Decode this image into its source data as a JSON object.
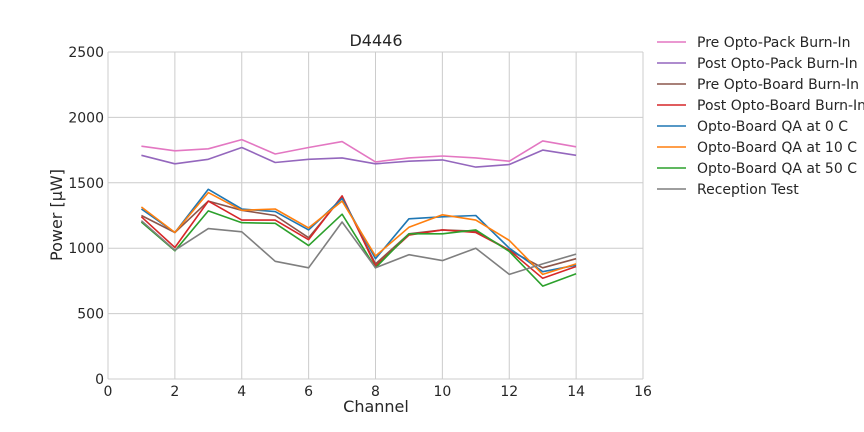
{
  "chart_data": {
    "type": "line",
    "title": "D4446",
    "xlabel": "Channel",
    "ylabel": "Power [μW]",
    "xlim": [
      0,
      16
    ],
    "ylim": [
      0,
      2500
    ],
    "xticks": [
      "0",
      "2",
      "4",
      "6",
      "8",
      "10",
      "12",
      "14",
      "16"
    ],
    "yticks": [
      "0",
      "500",
      "1000",
      "1500",
      "2000",
      "2500"
    ],
    "grid": true,
    "legend_position": "outside-right",
    "x": [
      1,
      2,
      3,
      4,
      5,
      6,
      7,
      8,
      9,
      10,
      11,
      12,
      13,
      14
    ],
    "series": [
      {
        "name": "Pre Opto-Pack Burn-In",
        "color": "#e377c2",
        "values": [
          1780,
          1745,
          1760,
          1830,
          1720,
          1770,
          1815,
          1660,
          1690,
          1705,
          1690,
          1665,
          1820,
          1775
        ]
      },
      {
        "name": "Post Opto-Pack Burn-In",
        "color": "#9467bd",
        "values": [
          1710,
          1645,
          1680,
          1770,
          1655,
          1680,
          1690,
          1645,
          1665,
          1675,
          1620,
          1640,
          1750,
          1710
        ]
      },
      {
        "name": "Pre Opto-Board Burn-In",
        "color": "#8c564b",
        "values": [
          1250,
          1120,
          1360,
          1290,
          1250,
          1080,
          1390,
          880,
          1110,
          1140,
          1130,
          985,
          850,
          920
        ]
      },
      {
        "name": "Post Opto-Board Burn-In",
        "color": "#d62728",
        "values": [
          1240,
          1005,
          1360,
          1215,
          1215,
          1065,
          1400,
          865,
          1100,
          1140,
          1120,
          985,
          770,
          860
        ]
      },
      {
        "name": "Opto-Board QA at 0 C",
        "color": "#1f77b4",
        "values": [
          1300,
          1120,
          1450,
          1300,
          1280,
          1140,
          1380,
          920,
          1225,
          1240,
          1250,
          1000,
          820,
          870
        ]
      },
      {
        "name": "Opto-Board QA at 10 C",
        "color": "#ff7f0e",
        "values": [
          1315,
          1120,
          1425,
          1290,
          1300,
          1155,
          1360,
          940,
          1160,
          1255,
          1215,
          1060,
          800,
          880
        ]
      },
      {
        "name": "Opto-Board QA at 50 C",
        "color": "#2ca02c",
        "values": [
          1200,
          980,
          1285,
          1195,
          1190,
          1020,
          1260,
          850,
          1110,
          1110,
          1140,
          975,
          710,
          805
        ]
      },
      {
        "name": "Reception Test",
        "color": "#7f7f7f",
        "values": [
          1210,
          985,
          1150,
          1125,
          900,
          850,
          1200,
          850,
          950,
          905,
          1000,
          800,
          880,
          955
        ]
      }
    ]
  }
}
